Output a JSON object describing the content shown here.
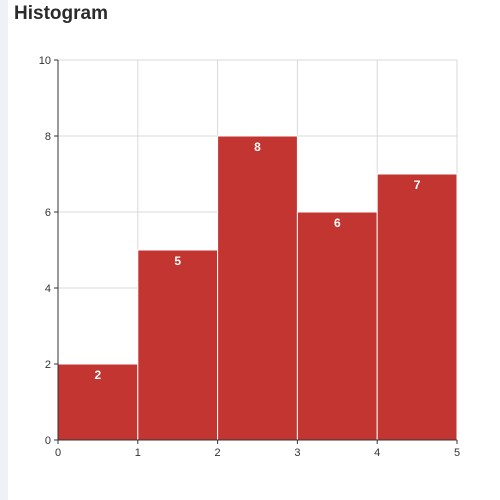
{
  "chart_data": {
    "type": "bar",
    "title": "Histogram",
    "xlabel": "",
    "ylabel": "",
    "bins": [
      {
        "x0": 0,
        "x1": 1,
        "value": 2
      },
      {
        "x0": 1,
        "x1": 2,
        "value": 5
      },
      {
        "x0": 2,
        "x1": 3,
        "value": 8
      },
      {
        "x0": 3,
        "x1": 4,
        "value": 6
      },
      {
        "x0": 4,
        "x1": 5,
        "value": 7
      }
    ],
    "xlim": [
      0,
      5
    ],
    "ylim": [
      0,
      10
    ],
    "x_ticks": [
      0,
      1,
      2,
      3,
      4,
      5
    ],
    "y_ticks": [
      0,
      2,
      4,
      6,
      8,
      10
    ],
    "grid": true,
    "bar_color": "#c23531",
    "label_color": "#ffffff",
    "grid_color": "#d9d9d9",
    "axis_color": "#333333"
  }
}
